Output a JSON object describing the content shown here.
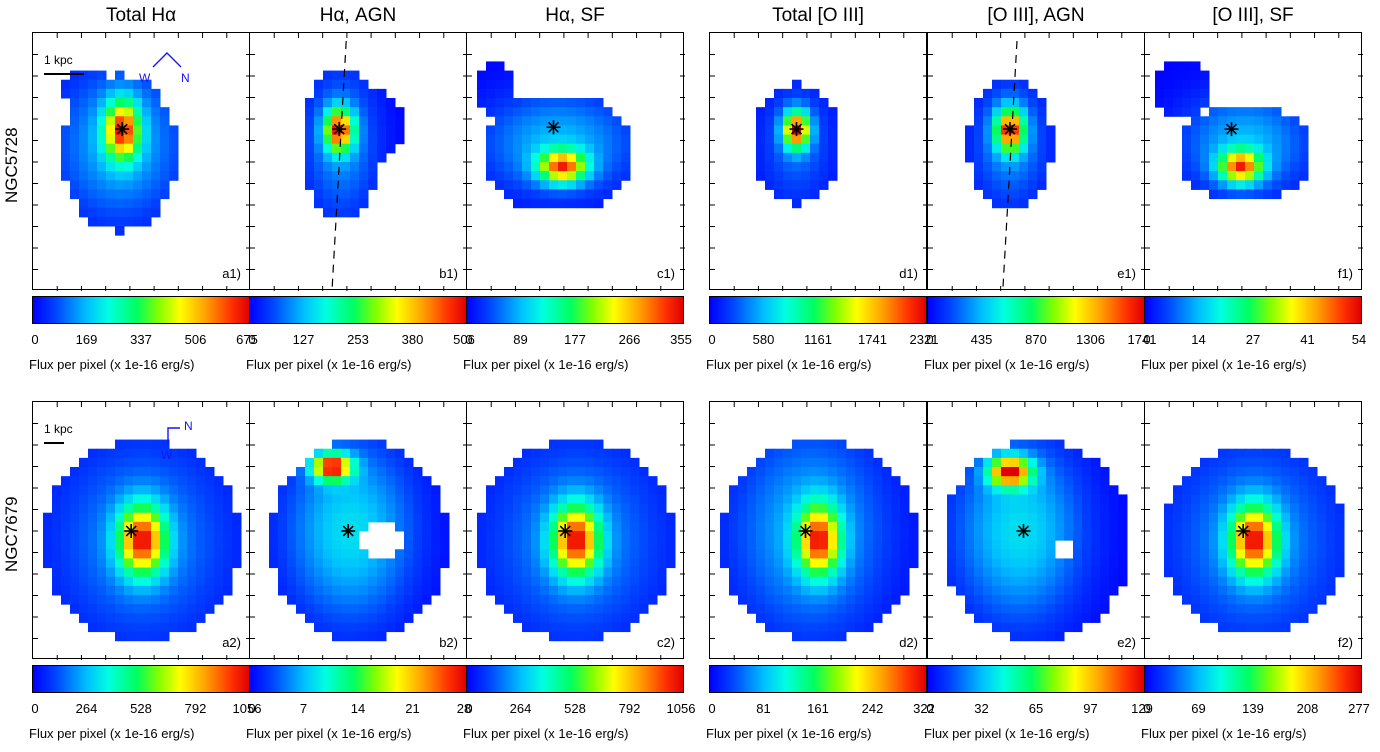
{
  "figure": {
    "columns": [
      "Total Hα",
      "Hα, AGN",
      "Hα, SF",
      "Total [O III]",
      "[O III], AGN",
      "[O III], SF"
    ],
    "rows": [
      "NGC5728",
      "NGC7679"
    ],
    "colorbar_label": "Flux per pixel (x 1e-16 erg/s)",
    "scale_text": "1 kpc",
    "compass_w": "W",
    "compass_n": "N",
    "colormap": "rainbow (blue to red)",
    "marker": "black asterisk at nucleus"
  },
  "chart_data": [
    {
      "type": "heatmap",
      "panel": "a1)",
      "galaxy": "NGC5728",
      "title": "Total Hα",
      "colorbar_ticks": [
        "0",
        "169",
        "337",
        "506",
        "675"
      ],
      "colorbar_range": [
        0,
        675
      ]
    },
    {
      "type": "heatmap",
      "panel": "b1)",
      "galaxy": "NGC5728",
      "title": "Hα, AGN",
      "colorbar_ticks": [
        "0",
        "127",
        "253",
        "380",
        "506"
      ],
      "colorbar_range": [
        0,
        506
      ]
    },
    {
      "type": "heatmap",
      "panel": "c1)",
      "galaxy": "NGC5728",
      "title": "Hα, SF",
      "colorbar_ticks": [
        "0",
        "89",
        "177",
        "266",
        "355"
      ],
      "colorbar_range": [
        0,
        355
      ]
    },
    {
      "type": "heatmap",
      "panel": "d1)",
      "galaxy": "NGC5728",
      "title": "Total [O III]",
      "colorbar_ticks": [
        "0",
        "580",
        "1161",
        "1741",
        "2321"
      ],
      "colorbar_range": [
        0,
        2321
      ]
    },
    {
      "type": "heatmap",
      "panel": "e1)",
      "galaxy": "NGC5728",
      "title": "[O III], AGN",
      "colorbar_ticks": [
        "0",
        "435",
        "870",
        "1306",
        "1741"
      ],
      "colorbar_range": [
        0,
        1741
      ]
    },
    {
      "type": "heatmap",
      "panel": "f1)",
      "galaxy": "NGC5728",
      "title": "[O III], SF",
      "colorbar_ticks": [
        "0",
        "14",
        "27",
        "41",
        "54"
      ],
      "colorbar_range": [
        0,
        54
      ]
    },
    {
      "type": "heatmap",
      "panel": "a2)",
      "galaxy": "NGC7679",
      "title": "Total Hα",
      "colorbar_ticks": [
        "0",
        "264",
        "528",
        "792",
        "1056"
      ],
      "colorbar_range": [
        0,
        1056
      ]
    },
    {
      "type": "heatmap",
      "panel": "b2)",
      "galaxy": "NGC7679",
      "title": "Hα, AGN",
      "colorbar_ticks": [
        "0",
        "7",
        "14",
        "21",
        "28"
      ],
      "colorbar_range": [
        0,
        28
      ]
    },
    {
      "type": "heatmap",
      "panel": "c2)",
      "galaxy": "NGC7679",
      "title": "Hα, SF",
      "colorbar_ticks": [
        "0",
        "264",
        "528",
        "792",
        "1056"
      ],
      "colorbar_range": [
        0,
        1056
      ]
    },
    {
      "type": "heatmap",
      "panel": "d2)",
      "galaxy": "NGC7679",
      "title": "Total [O III]",
      "colorbar_ticks": [
        "0",
        "81",
        "161",
        "242",
        "322"
      ],
      "colorbar_range": [
        0,
        322
      ]
    },
    {
      "type": "heatmap",
      "panel": "e2)",
      "galaxy": "NGC7679",
      "title": "[O III], AGN",
      "colorbar_ticks": [
        "0",
        "32",
        "65",
        "97",
        "129"
      ],
      "colorbar_range": [
        0,
        129
      ]
    },
    {
      "type": "heatmap",
      "panel": "f2)",
      "galaxy": "NGC7679",
      "title": "[O III], SF",
      "colorbar_ticks": [
        "0",
        "69",
        "139",
        "208",
        "277"
      ],
      "colorbar_range": [
        0,
        277
      ]
    }
  ]
}
